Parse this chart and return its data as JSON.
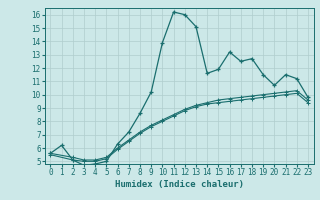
{
  "xlabel": "Humidex (Indice chaleur)",
  "ylabel": "",
  "background_color": "#cce8e8",
  "grid_color": "#b0cece",
  "line_color": "#1a6e6e",
  "xlim": [
    -0.5,
    23.5
  ],
  "ylim": [
    4.8,
    16.5
  ],
  "xticks": [
    0,
    1,
    2,
    3,
    4,
    5,
    6,
    7,
    8,
    9,
    10,
    11,
    12,
    13,
    14,
    15,
    16,
    17,
    18,
    19,
    20,
    21,
    22,
    23
  ],
  "yticks": [
    5,
    6,
    7,
    8,
    9,
    10,
    11,
    12,
    13,
    14,
    15,
    16
  ],
  "line1_x": [
    0,
    1,
    2,
    3,
    4,
    5,
    6,
    7,
    8,
    9,
    10,
    11,
    12,
    13,
    14,
    15,
    16,
    17,
    18,
    19,
    20,
    21,
    22,
    23
  ],
  "line1_y": [
    5.6,
    6.2,
    5.1,
    4.7,
    4.8,
    5.0,
    6.3,
    7.2,
    8.6,
    10.2,
    13.9,
    16.2,
    16.0,
    15.1,
    11.6,
    11.9,
    13.2,
    12.5,
    12.7,
    11.5,
    10.7,
    11.5,
    11.2,
    9.8
  ],
  "line2_x": [
    0,
    2,
    3,
    4,
    5,
    6,
    7,
    8,
    9,
    10,
    11,
    12,
    13,
    14,
    15,
    16,
    17,
    18,
    19,
    20,
    21,
    22,
    23
  ],
  "line2_y": [
    5.6,
    5.3,
    5.1,
    5.1,
    5.3,
    6.0,
    6.6,
    7.2,
    7.7,
    8.1,
    8.5,
    8.9,
    9.2,
    9.4,
    9.6,
    9.7,
    9.8,
    9.9,
    10.0,
    10.1,
    10.2,
    10.3,
    9.6
  ],
  "line3_x": [
    0,
    2,
    3,
    4,
    5,
    6,
    7,
    8,
    9,
    10,
    11,
    12,
    13,
    14,
    15,
    16,
    17,
    18,
    19,
    20,
    21,
    22,
    23
  ],
  "line3_y": [
    5.5,
    5.1,
    5.0,
    5.0,
    5.2,
    5.9,
    6.5,
    7.1,
    7.6,
    8.0,
    8.4,
    8.8,
    9.1,
    9.3,
    9.4,
    9.5,
    9.6,
    9.7,
    9.8,
    9.9,
    10.0,
    10.1,
    9.4
  ]
}
